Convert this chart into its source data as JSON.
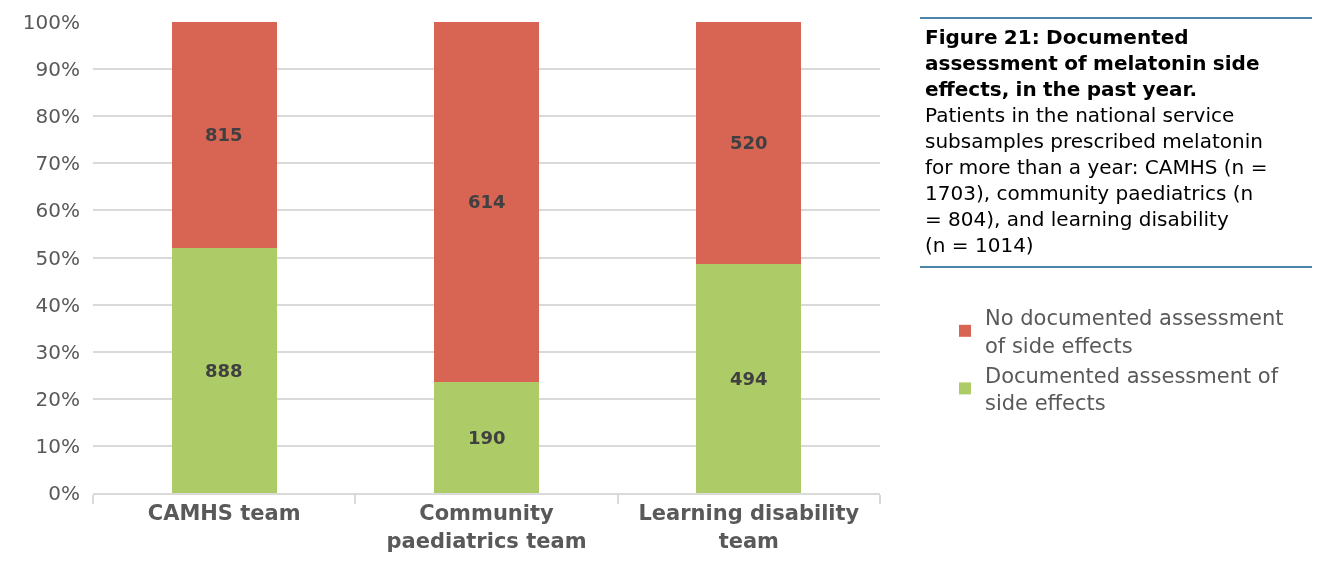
{
  "chart_data": {
    "type": "bar",
    "title": "Figure 21: Documented assessment of melatonin side effects, in the past year.",
    "subtitle": "Patients in the national service subsamples prescribed melatonin for more than a year: CAMHS (n = 1703), community paediatrics (n = 804), and learning disability (n = 1014)",
    "categories": [
      "CAMHS team",
      "Community paediatrics team",
      "Learning disability team"
    ],
    "series": [
      {
        "name": "Documented assessment of side effects",
        "color": "#adcb66",
        "values": [
          52.1,
          23.6,
          48.7
        ]
      },
      {
        "name": "No documented assessment of side effects",
        "color": "#d86453",
        "values": [
          47.9,
          76.4,
          51.3
        ]
      }
    ],
    "annotations": [
      "888",
      "190",
      "494",
      "815",
      "614",
      "520"
    ],
    "stacked": true,
    "ylim": [
      0,
      100
    ],
    "yticks": [
      {
        "value": 0,
        "label": "0%"
      },
      {
        "value": 10,
        "label": "10%"
      },
      {
        "value": 20,
        "label": "20%"
      },
      {
        "value": 30,
        "label": "30%"
      },
      {
        "value": 40,
        "label": "40%"
      },
      {
        "value": 50,
        "label": "50%"
      },
      {
        "value": 60,
        "label": "60%"
      },
      {
        "value": 70,
        "label": "70%"
      },
      {
        "value": 80,
        "label": "80%"
      },
      {
        "value": 90,
        "label": "90%"
      },
      {
        "value": 100,
        "label": "100%"
      }
    ],
    "grid": "y",
    "legend": "right"
  }
}
